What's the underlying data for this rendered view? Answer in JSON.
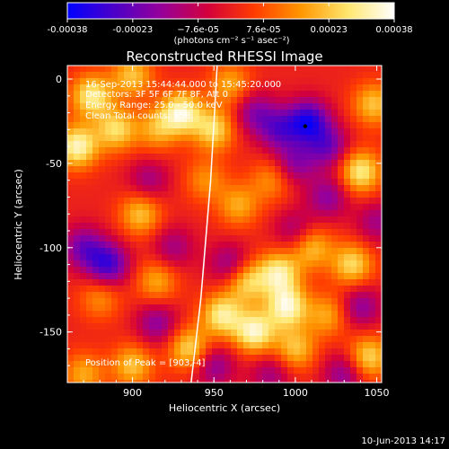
{
  "colorbar": {
    "ticks": [
      "-0.00038",
      "-0.00023",
      "−7.6e-05",
      "7.6e-05",
      "0.00023",
      "0.00038"
    ],
    "unit_label": "(photons cm⁻² s⁻¹ asec⁻²)",
    "range": [
      -0.00038,
      0.00038
    ],
    "colormap": [
      "#0000ff",
      "#4b00c8",
      "#96009b",
      "#d2003c",
      "#ff3c00",
      "#ff9600",
      "#ffe66e",
      "#ffffff"
    ]
  },
  "chart_data": {
    "type": "heatmap",
    "title": "Reconstructed RHESSI Image",
    "xlabel": "Heliocentric X (arcsec)",
    "ylabel": "Heliocentric Y (arcsec)",
    "xlim": [
      860,
      1053
    ],
    "ylim": [
      -180,
      8
    ],
    "xticks": [
      900,
      950,
      1000,
      1050
    ],
    "yticks": [
      -150,
      -100,
      -50,
      0
    ],
    "annotations": [
      "16-Sep-2013 15:44:44.000 to 15:45:20.000",
      "Detectors: 3F 5F 6F 7F 8F, Att 0",
      "Energy Range: 25.0 - 50.0 keV",
      "Clean     Total counts: 958."
    ],
    "peak_label": "Position of Peak = [903,-4]",
    "marker": {
      "x": 1006,
      "y": -28
    },
    "limb": [
      [
        936,
        -180
      ],
      [
        942,
        -130
      ],
      [
        948,
        -60
      ],
      [
        952,
        8
      ]
    ],
    "blobs": [
      {
        "x": 866,
        "y": -40,
        "v": 0.9
      },
      {
        "x": 875,
        "y": -10,
        "v": 0.8
      },
      {
        "x": 890,
        "y": -30,
        "v": 0.7
      },
      {
        "x": 900,
        "y": 2,
        "v": 0.6
      },
      {
        "x": 915,
        "y": -30,
        "v": 0.5
      },
      {
        "x": 930,
        "y": -20,
        "v": 0.9
      },
      {
        "x": 950,
        "y": -30,
        "v": 0.7
      },
      {
        "x": 960,
        "y": -3,
        "v": 0.5
      },
      {
        "x": 945,
        "y": -60,
        "v": 0.4
      },
      {
        "x": 965,
        "y": -75,
        "v": 0.5
      },
      {
        "x": 985,
        "y": -60,
        "v": 0.4
      },
      {
        "x": 1040,
        "y": -55,
        "v": 0.8
      },
      {
        "x": 1048,
        "y": -15,
        "v": 0.6
      },
      {
        "x": 1035,
        "y": -110,
        "v": 0.7
      },
      {
        "x": 1010,
        "y": -100,
        "v": 0.6
      },
      {
        "x": 990,
        "y": -115,
        "v": 0.8
      },
      {
        "x": 970,
        "y": -120,
        "v": 0.7
      },
      {
        "x": 955,
        "y": -140,
        "v": 0.8
      },
      {
        "x": 975,
        "y": -150,
        "v": 0.9
      },
      {
        "x": 995,
        "y": -135,
        "v": 0.9
      },
      {
        "x": 1000,
        "y": -160,
        "v": 0.6
      },
      {
        "x": 1045,
        "y": -165,
        "v": 0.7
      },
      {
        "x": 935,
        "y": -160,
        "v": 0.7
      },
      {
        "x": 915,
        "y": -120,
        "v": 0.5
      },
      {
        "x": 905,
        "y": -80,
        "v": 0.6
      },
      {
        "x": 880,
        "y": -130,
        "v": 0.4
      },
      {
        "x": 870,
        "y": -175,
        "v": 0.5
      },
      {
        "x": 900,
        "y": -170,
        "v": 0.6
      },
      {
        "x": 1020,
        "y": -140,
        "v": 0.5
      },
      {
        "x": 1008,
        "y": -25,
        "v": -0.9
      },
      {
        "x": 990,
        "y": -30,
        "v": -0.6
      },
      {
        "x": 1020,
        "y": -40,
        "v": -0.6
      },
      {
        "x": 885,
        "y": -110,
        "v": -0.8
      },
      {
        "x": 870,
        "y": -100,
        "v": -0.6
      },
      {
        "x": 1020,
        "y": -70,
        "v": -0.5
      },
      {
        "x": 960,
        "y": -110,
        "v": -0.5
      },
      {
        "x": 1000,
        "y": -50,
        "v": -0.5
      },
      {
        "x": 1040,
        "y": -135,
        "v": -0.5
      },
      {
        "x": 925,
        "y": -100,
        "v": -0.4
      },
      {
        "x": 950,
        "y": -170,
        "v": -0.5
      },
      {
        "x": 915,
        "y": -145,
        "v": -0.5
      },
      {
        "x": 1000,
        "y": -90,
        "v": -0.4
      },
      {
        "x": 985,
        "y": -175,
        "v": -0.4
      },
      {
        "x": 1030,
        "y": -175,
        "v": -0.5
      },
      {
        "x": 910,
        "y": -60,
        "v": -0.4
      },
      {
        "x": 975,
        "y": -20,
        "v": -0.5
      },
      {
        "x": 1050,
        "y": -85,
        "v": -0.4
      }
    ]
  },
  "footer": {
    "timestamp": "10-Jun-2013 14:17"
  }
}
